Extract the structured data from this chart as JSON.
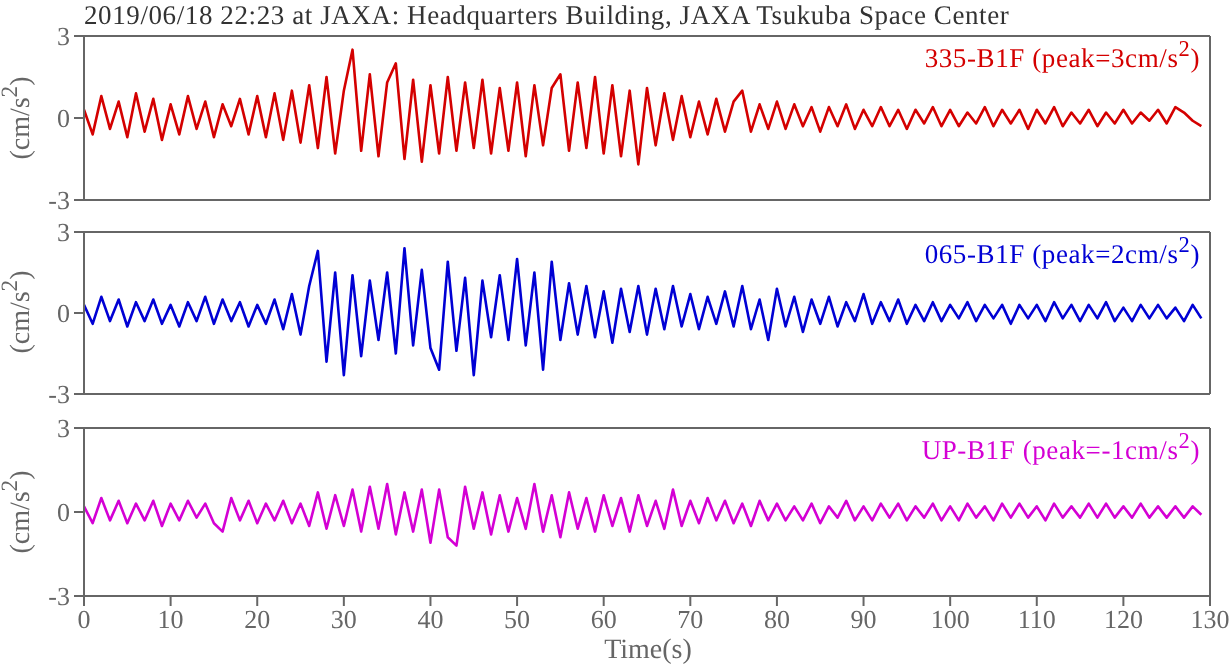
{
  "chart_data": [
    {
      "type": "line",
      "title": "2019/06/18 22:23 at JAXA: Headquarters Building, JAXA Tsukuba Space Center",
      "ylabel": "(cm/s$^{2}$)",
      "tick_labels": "y",
      "xlim": [
        0,
        130
      ],
      "xticks": [
        0,
        10,
        20,
        30,
        40,
        50,
        60,
        70,
        80,
        90,
        100,
        110,
        120,
        130
      ],
      "ylim": [
        -3,
        3
      ],
      "yticks": [
        -3,
        0,
        3
      ],
      "marker": "none",
      "x": [
        0,
        1,
        2,
        3,
        4,
        5,
        6,
        7,
        8,
        9,
        10,
        11,
        12,
        13,
        14,
        15,
        16,
        17,
        18,
        19,
        20,
        21,
        22,
        23,
        24,
        25,
        26,
        27,
        28,
        29,
        30,
        31,
        32,
        33,
        34,
        35,
        36,
        37,
        38,
        39,
        40,
        41,
        42,
        43,
        44,
        45,
        46,
        47,
        48,
        49,
        50,
        51,
        52,
        53,
        54,
        55,
        56,
        57,
        58,
        59,
        60,
        61,
        62,
        63,
        64,
        65,
        66,
        67,
        68,
        69,
        70,
        71,
        72,
        73,
        74,
        75,
        76,
        77,
        78,
        79,
        80,
        81,
        82,
        83,
        84,
        85,
        86,
        87,
        88,
        89,
        90,
        91,
        92,
        93,
        94,
        95,
        96,
        97,
        98,
        99,
        100,
        101,
        102,
        103,
        104,
        105,
        106,
        107,
        108,
        109,
        110,
        111,
        112,
        113,
        114,
        115,
        116,
        117,
        118,
        119,
        120,
        121,
        122,
        123,
        124,
        125,
        126,
        127,
        128,
        129
      ],
      "series": [
        {
          "name": "335-B1F (peak=3cm/s$^{2}$)",
          "color": "#d40000",
          "values": [
            0.3,
            -0.6,
            0.8,
            -0.4,
            0.6,
            -0.7,
            0.9,
            -0.5,
            0.7,
            -0.8,
            0.5,
            -0.6,
            0.8,
            -0.4,
            0.6,
            -0.7,
            0.5,
            -0.3,
            0.7,
            -0.6,
            0.8,
            -0.7,
            0.9,
            -0.8,
            1.0,
            -0.9,
            1.2,
            -1.1,
            1.5,
            -1.3,
            1.0,
            2.5,
            -1.2,
            1.6,
            -1.4,
            1.3,
            2.0,
            -1.5,
            1.4,
            -1.6,
            1.2,
            -1.3,
            1.5,
            -1.2,
            1.3,
            -1.1,
            1.4,
            -1.3,
            1.1,
            -1.2,
            1.3,
            -1.4,
            1.2,
            -1.0,
            1.1,
            1.6,
            -1.2,
            1.3,
            -1.1,
            1.5,
            -1.3,
            1.2,
            -1.4,
            1.0,
            -1.7,
            1.1,
            -1.0,
            0.9,
            -0.8,
            0.8,
            -0.7,
            0.6,
            -0.6,
            0.7,
            -0.5,
            0.6,
            1.0,
            -0.5,
            0.5,
            -0.4,
            0.6,
            -0.4,
            0.5,
            -0.3,
            0.4,
            -0.5,
            0.4,
            -0.3,
            0.5,
            -0.4,
            0.3,
            -0.3,
            0.4,
            -0.3,
            0.3,
            -0.4,
            0.3,
            -0.2,
            0.4,
            -0.3,
            0.3,
            -0.3,
            0.2,
            -0.2,
            0.4,
            -0.3,
            0.3,
            -0.2,
            0.3,
            -0.4,
            0.3,
            -0.2,
            0.4,
            -0.3,
            0.2,
            -0.2,
            0.3,
            -0.3,
            0.2,
            -0.2,
            0.3,
            -0.2,
            0.2,
            -0.1,
            0.3,
            -0.2,
            0.4,
            0.2,
            -0.1,
            -0.3
          ]
        }
      ]
    },
    {
      "type": "line",
      "ylabel": "(cm/s$^{2}$)",
      "tick_labels": "y",
      "xlim": [
        0,
        130
      ],
      "xticks": [
        0,
        10,
        20,
        30,
        40,
        50,
        60,
        70,
        80,
        90,
        100,
        110,
        120,
        130
      ],
      "ylim": [
        -3,
        3
      ],
      "yticks": [
        -3,
        0,
        3
      ],
      "marker": "none",
      "x": [
        0,
        1,
        2,
        3,
        4,
        5,
        6,
        7,
        8,
        9,
        10,
        11,
        12,
        13,
        14,
        15,
        16,
        17,
        18,
        19,
        20,
        21,
        22,
        23,
        24,
        25,
        26,
        27,
        28,
        29,
        30,
        31,
        32,
        33,
        34,
        35,
        36,
        37,
        38,
        39,
        40,
        41,
        42,
        43,
        44,
        45,
        46,
        47,
        48,
        49,
        50,
        51,
        52,
        53,
        54,
        55,
        56,
        57,
        58,
        59,
        60,
        61,
        62,
        63,
        64,
        65,
        66,
        67,
        68,
        69,
        70,
        71,
        72,
        73,
        74,
        75,
        76,
        77,
        78,
        79,
        80,
        81,
        82,
        83,
        84,
        85,
        86,
        87,
        88,
        89,
        90,
        91,
        92,
        93,
        94,
        95,
        96,
        97,
        98,
        99,
        100,
        101,
        102,
        103,
        104,
        105,
        106,
        107,
        108,
        109,
        110,
        111,
        112,
        113,
        114,
        115,
        116,
        117,
        118,
        119,
        120,
        121,
        122,
        123,
        124,
        125,
        126,
        127,
        128,
        129
      ],
      "series": [
        {
          "name": "065-B1F (peak=2cm/s$^{2}$)",
          "color": "#0000d4",
          "values": [
            0.3,
            -0.4,
            0.6,
            -0.3,
            0.5,
            -0.5,
            0.4,
            -0.3,
            0.5,
            -0.4,
            0.3,
            -0.5,
            0.4,
            -0.3,
            0.6,
            -0.4,
            0.5,
            -0.3,
            0.4,
            -0.5,
            0.3,
            -0.4,
            0.5,
            -0.6,
            0.7,
            -0.8,
            1.0,
            2.3,
            -1.8,
            1.5,
            -2.3,
            1.4,
            -1.6,
            1.2,
            -1.0,
            1.5,
            -1.5,
            2.4,
            -1.2,
            1.6,
            -1.3,
            -2.1,
            1.9,
            -1.4,
            1.3,
            -2.3,
            1.2,
            -0.9,
            1.4,
            -1.0,
            2.0,
            -1.2,
            1.5,
            -2.1,
            1.9,
            -1.0,
            1.1,
            -0.8,
            1.0,
            -0.9,
            0.8,
            -1.1,
            0.9,
            -0.7,
            1.0,
            -0.8,
            0.9,
            -0.6,
            1.0,
            -0.5,
            0.7,
            -0.6,
            0.6,
            -0.4,
            0.8,
            -0.5,
            1.0,
            -0.6,
            0.5,
            -1.0,
            0.9,
            -0.5,
            0.6,
            -0.7,
            0.5,
            -0.4,
            0.6,
            -0.5,
            0.4,
            -0.3,
            0.7,
            -0.4,
            0.4,
            -0.3,
            0.5,
            -0.4,
            0.3,
            -0.3,
            0.4,
            -0.3,
            0.3,
            -0.2,
            0.4,
            -0.3,
            0.3,
            -0.2,
            0.3,
            -0.4,
            0.3,
            -0.2,
            0.3,
            -0.3,
            0.4,
            -0.2,
            0.3,
            -0.3,
            0.3,
            -0.2,
            0.4,
            -0.3,
            0.2,
            -0.3,
            0.3,
            -0.2,
            0.3,
            -0.2,
            0.2,
            -0.3,
            0.3,
            -0.2
          ]
        }
      ]
    },
    {
      "type": "line",
      "ylabel": "(cm/s$^{2}$)",
      "xlabel": "Time(s)",
      "xlim": [
        0,
        130
      ],
      "xticks": [
        0,
        10,
        20,
        30,
        40,
        50,
        60,
        70,
        80,
        90,
        100,
        110,
        120,
        130
      ],
      "ylim": [
        -3,
        3
      ],
      "yticks": [
        -3,
        0,
        3
      ],
      "marker": "none",
      "x": [
        0,
        1,
        2,
        3,
        4,
        5,
        6,
        7,
        8,
        9,
        10,
        11,
        12,
        13,
        14,
        15,
        16,
        17,
        18,
        19,
        20,
        21,
        22,
        23,
        24,
        25,
        26,
        27,
        28,
        29,
        30,
        31,
        32,
        33,
        34,
        35,
        36,
        37,
        38,
        39,
        40,
        41,
        42,
        43,
        44,
        45,
        46,
        47,
        48,
        49,
        50,
        51,
        52,
        53,
        54,
        55,
        56,
        57,
        58,
        59,
        60,
        61,
        62,
        63,
        64,
        65,
        66,
        67,
        68,
        69,
        70,
        71,
        72,
        73,
        74,
        75,
        76,
        77,
        78,
        79,
        80,
        81,
        82,
        83,
        84,
        85,
        86,
        87,
        88,
        89,
        90,
        91,
        92,
        93,
        94,
        95,
        96,
        97,
        98,
        99,
        100,
        101,
        102,
        103,
        104,
        105,
        106,
        107,
        108,
        109,
        110,
        111,
        112,
        113,
        114,
        115,
        116,
        117,
        118,
        119,
        120,
        121,
        122,
        123,
        124,
        125,
        126,
        127,
        128,
        129
      ],
      "series": [
        {
          "name": "UP-B1F (peak=-1cm/s$^{2}$)",
          "color": "#d400d4",
          "values": [
            0.2,
            -0.4,
            0.5,
            -0.3,
            0.4,
            -0.4,
            0.3,
            -0.3,
            0.4,
            -0.5,
            0.3,
            -0.3,
            0.4,
            -0.2,
            0.3,
            -0.4,
            -0.7,
            0.5,
            -0.3,
            0.4,
            -0.4,
            0.3,
            -0.3,
            0.4,
            -0.4,
            0.3,
            -0.5,
            0.7,
            -0.6,
            0.6,
            -0.5,
            0.8,
            -0.7,
            0.9,
            -0.6,
            1.0,
            -0.8,
            0.7,
            -0.7,
            0.8,
            -1.1,
            0.8,
            -0.9,
            -1.2,
            0.9,
            -0.6,
            0.7,
            -0.8,
            0.6,
            -0.7,
            0.5,
            -0.6,
            1.0,
            -0.7,
            0.6,
            -0.9,
            0.7,
            -0.6,
            0.5,
            -0.7,
            0.6,
            -0.5,
            0.5,
            -0.7,
            0.6,
            -0.5,
            0.4,
            -0.6,
            0.8,
            -0.5,
            0.4,
            -0.4,
            0.5,
            -0.3,
            0.4,
            -0.4,
            0.3,
            -0.5,
            0.4,
            -0.3,
            0.3,
            -0.3,
            0.2,
            -0.3,
            0.3,
            -0.4,
            0.2,
            -0.2,
            0.4,
            -0.3,
            0.2,
            -0.3,
            0.3,
            -0.2,
            0.3,
            -0.3,
            0.2,
            -0.2,
            0.3,
            -0.3,
            0.2,
            -0.3,
            0.3,
            -0.2,
            0.2,
            -0.3,
            0.3,
            -0.2,
            0.3,
            -0.2,
            0.2,
            -0.3,
            0.3,
            -0.2,
            0.2,
            -0.2,
            0.3,
            -0.2,
            0.3,
            -0.2,
            0.2,
            -0.2,
            0.3,
            -0.2,
            0.2,
            -0.2,
            0.2,
            -0.2,
            0.2,
            -0.1
          ]
        }
      ]
    }
  ]
}
